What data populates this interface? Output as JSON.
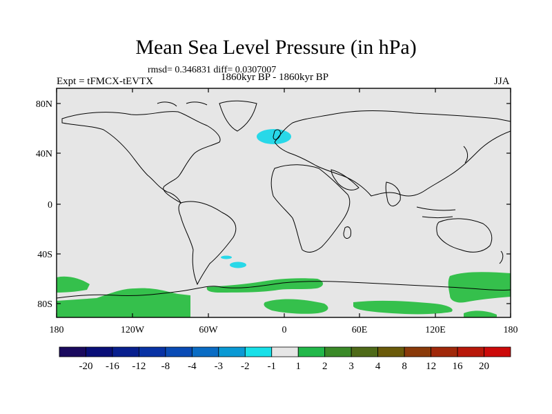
{
  "title": "Mean Sea Level Pressure (in hPa)",
  "stats": "rmsd= 0.346831 diff= 0.0307007",
  "experiment": "Expt = tFMCX-tEVTX",
  "period": "1860kyr BP - 1860kyr BP",
  "season": "JJA",
  "lat_ticks": [
    "80N",
    "40N",
    "0",
    "40S",
    "80S"
  ],
  "lon_ticks": [
    "180",
    "120W",
    "60W",
    "0",
    "60E",
    "120E",
    "180"
  ],
  "colorbar": {
    "labels": [
      "-20",
      "-16",
      "-12",
      "-8",
      "-4",
      "-3",
      "-2",
      "-1",
      "1",
      "2",
      "3",
      "4",
      "8",
      "12",
      "16",
      "20"
    ],
    "colors": [
      "#1a0a5e",
      "#0a0f78",
      "#081f8e",
      "#0832a4",
      "#0a4bb5",
      "#0a6cc4",
      "#0a99d4",
      "#18e0e8",
      "#e6e6e6",
      "#22b84a",
      "#3a8a28",
      "#4e6a18",
      "#6a5a0a",
      "#8a3a0a",
      "#a0280a",
      "#b8180a",
      "#cc0a0a"
    ]
  },
  "map": {
    "background_color": "#e6e6e6",
    "positive_anomaly_color": "#35c04c",
    "negative_anomaly_color": "#28d8e8",
    "coastline_color": "#000000"
  }
}
